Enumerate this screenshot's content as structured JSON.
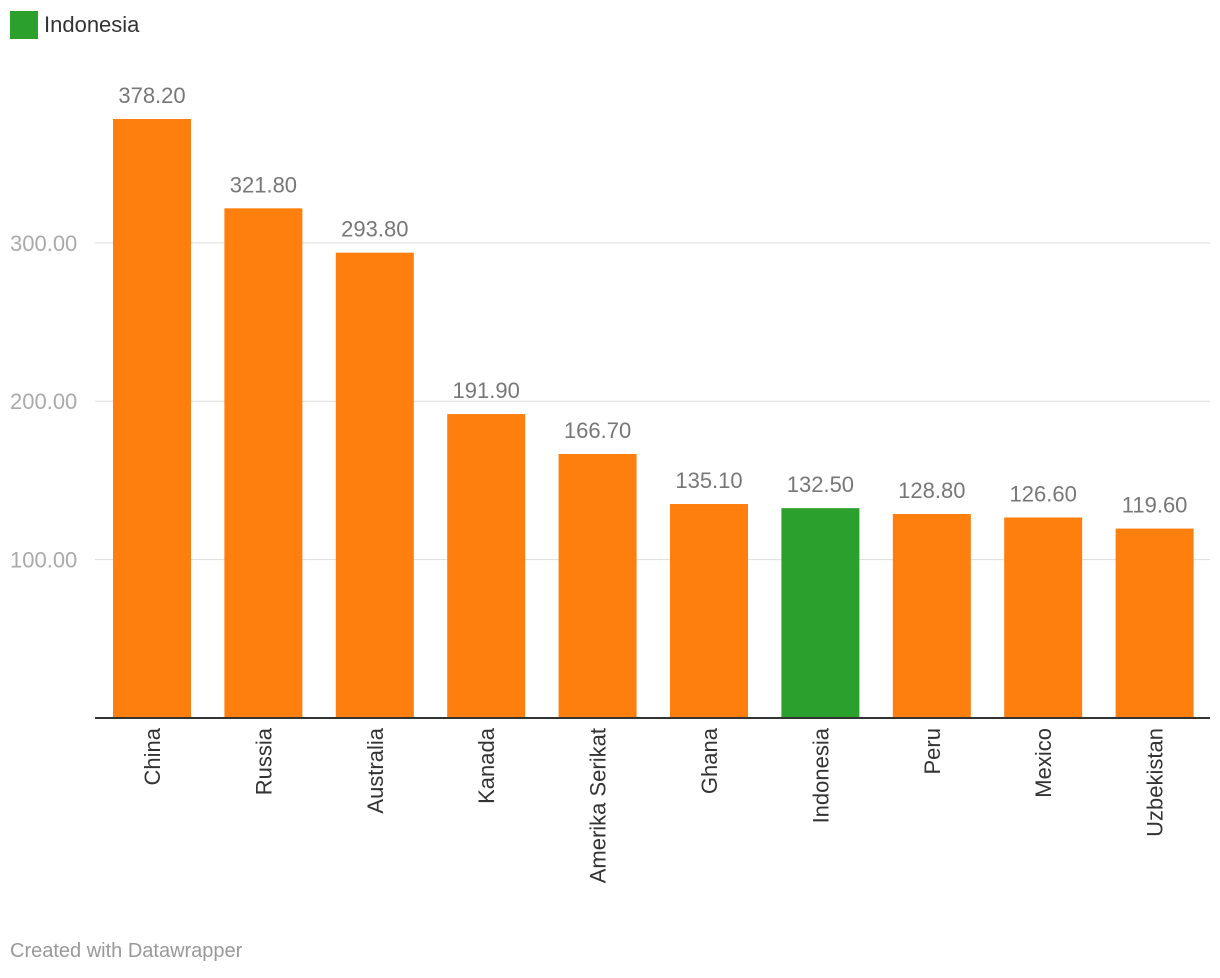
{
  "legend": {
    "label": "Indonesia",
    "color": "#2ca02c"
  },
  "credit": "Created with Datawrapper",
  "colors": {
    "default_bar": "#ff7f0e",
    "highlight_bar": "#2ca02c",
    "grid": "#dddddd",
    "axis": "#333333",
    "tick_label": "#aaaaaa",
    "value_label": "#777777",
    "category_label": "#333333"
  },
  "chart_data": {
    "type": "bar",
    "categories": [
      "China",
      "Russia",
      "Australia",
      "Kanada",
      "Amerika Serikat",
      "Ghana",
      "Indonesia",
      "Peru",
      "Mexico",
      "Uzbekistan"
    ],
    "values": [
      378.2,
      321.8,
      293.8,
      191.9,
      166.7,
      135.1,
      132.5,
      128.8,
      126.6,
      119.6
    ],
    "value_labels": [
      "378.20",
      "321.80",
      "293.80",
      "191.90",
      "166.70",
      "135.10",
      "132.50",
      "128.80",
      "126.60",
      "119.60"
    ],
    "highlight": [
      "Indonesia"
    ],
    "ylim": [
      0,
      378.2
    ],
    "yticks": [
      100,
      200,
      300
    ],
    "ytick_labels": [
      "100.00",
      "200.00",
      "300.00"
    ],
    "grid": true,
    "title": "",
    "xlabel": "",
    "ylabel": ""
  }
}
